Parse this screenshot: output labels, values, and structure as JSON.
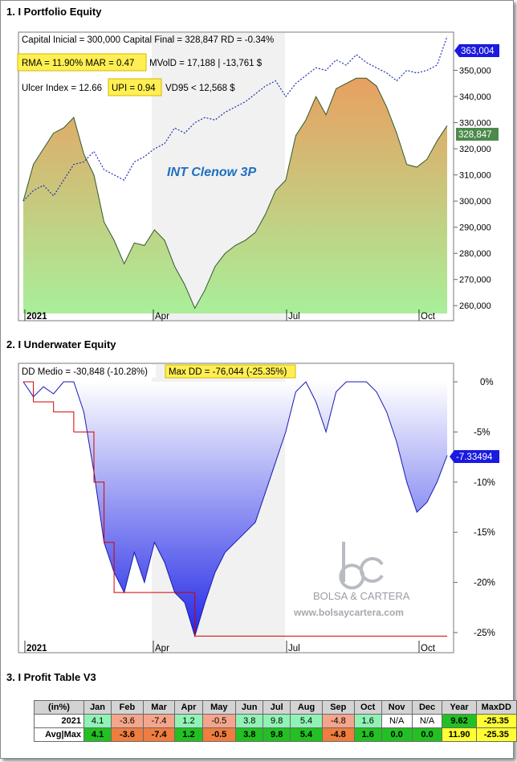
{
  "sections": {
    "equity_title": "1. I Portfolio Equity",
    "underwater_title": "2. I Underwater Equity",
    "profit_title": "3. I Profit Table V3"
  },
  "equity_stats": {
    "line1": "Capital Inicial = 300,000  Capital Final = 328,847   RD = -0.34%",
    "rma_mar": "RMA = 11.90%  MAR = 0.47",
    "mvold": "MVolD = 17,188 | -13,761 $",
    "ulcer": "Ulcer Index = 12.66",
    "upi": "UPI = 0.94",
    "vd95": "VD95 < 12,568 $",
    "strategy_name": "INT Clenow 3P",
    "last_benchmark_label": "363,004",
    "last_equity_label": "328,847",
    "right_axis_ticks": [
      "350,000",
      "340,000",
      "330,000",
      "320,000",
      "310,000",
      "300,000",
      "290,000",
      "280,000",
      "270,000",
      "260,000"
    ],
    "x_ticks": [
      "2021",
      "Apr",
      "Jul",
      "Oct"
    ]
  },
  "underwater_stats": {
    "dd_medio": "DD Medio = -30,848 (-10.28%)",
    "max_dd": "Max DD = -76,044 (-25.35%)",
    "last_label": "-7.33494",
    "right_axis_ticks": [
      "0%",
      "-5%",
      "-10%",
      "-15%",
      "-20%",
      "-25%"
    ],
    "x_ticks": [
      "2021",
      "Apr",
      "Jul",
      "Oct"
    ],
    "watermark_brand": "BOLSA & CARTERA",
    "watermark_url": "www.bolsaycartera.com"
  },
  "colors": {
    "benchmark_line": "#1f2fb4",
    "equity_fill_top": "#e8a060",
    "equity_fill_bottom": "#a9ef9a",
    "underwater_fill_top": "#ffffff",
    "underwater_fill_bottom": "#2228e6",
    "maxdd_line": "#d40000",
    "highlight_box": "#ffef52",
    "label_blue": "#1a1ae0",
    "label_green": "#4c8a4c"
  },
  "chart_data": [
    {
      "type": "area",
      "x": [
        "2021-01-04",
        "2021-01-11",
        "2021-01-18",
        "2021-01-25",
        "2021-02-01",
        "2021-02-08",
        "2021-02-15",
        "2021-02-22",
        "2021-03-01",
        "2021-03-08",
        "2021-03-15",
        "2021-03-22",
        "2021-03-29",
        "2021-04-05",
        "2021-04-12",
        "2021-04-19",
        "2021-04-26",
        "2021-05-03",
        "2021-05-10",
        "2021-05-17",
        "2021-05-24",
        "2021-05-31",
        "2021-06-07",
        "2021-06-14",
        "2021-06-21",
        "2021-06-28",
        "2021-07-05",
        "2021-07-12",
        "2021-07-19",
        "2021-07-26",
        "2021-08-02",
        "2021-08-09",
        "2021-08-16",
        "2021-08-23",
        "2021-08-30",
        "2021-09-06",
        "2021-09-13",
        "2021-09-20",
        "2021-09-27",
        "2021-10-04",
        "2021-10-11",
        "2021-10-18",
        "2021-10-25"
      ],
      "series": [
        {
          "name": "",
          "values": [
            300000,
            314000,
            320000,
            326000,
            328000,
            332000,
            318000,
            310000,
            292000,
            285000,
            276000,
            284000,
            283000,
            289000,
            285000,
            275000,
            268000,
            259000,
            266000,
            275000,
            280000,
            283000,
            285000,
            288000,
            295000,
            304000,
            308000,
            325000,
            331000,
            340000,
            333000,
            343000,
            345000,
            347000,
            347000,
            344000,
            336000,
            326000,
            314000,
            313000,
            316000,
            323000,
            328847
          ]
        },
        {
          "name": "",
          "values": [
            300000,
            304000,
            306000,
            302000,
            308000,
            314000,
            315000,
            319000,
            312000,
            310000,
            308000,
            315000,
            317000,
            320000,
            322000,
            328000,
            326000,
            330000,
            332000,
            331000,
            334000,
            336000,
            338000,
            341000,
            344000,
            346000,
            340000,
            345000,
            348000,
            351000,
            350000,
            354000,
            352000,
            356000,
            353000,
            351000,
            349000,
            346000,
            350000,
            349000,
            350000,
            352000,
            363004
          ]
        }
      ],
      "ylim": [
        257000,
        364000
      ],
      "x_tick_labels": [
        "2021",
        "Apr",
        "Jul",
        "Oct"
      ]
    },
    {
      "type": "area",
      "x": [
        "2021-01-04",
        "2021-01-11",
        "2021-01-18",
        "2021-01-25",
        "2021-02-01",
        "2021-02-08",
        "2021-02-15",
        "2021-02-22",
        "2021-03-01",
        "2021-03-08",
        "2021-03-15",
        "2021-03-22",
        "2021-03-29",
        "2021-04-05",
        "2021-04-12",
        "2021-04-19",
        "2021-04-26",
        "2021-05-03",
        "2021-05-10",
        "2021-05-17",
        "2021-05-24",
        "2021-05-31",
        "2021-06-07",
        "2021-06-14",
        "2021-06-21",
        "2021-06-28",
        "2021-07-05",
        "2021-07-12",
        "2021-07-19",
        "2021-07-26",
        "2021-08-02",
        "2021-08-09",
        "2021-08-16",
        "2021-08-23",
        "2021-08-30",
        "2021-09-06",
        "2021-09-13",
        "2021-09-20",
        "2021-09-27",
        "2021-10-04",
        "2021-10-11",
        "2021-10-18",
        "2021-10-25"
      ],
      "series": [
        {
          "name": "",
          "values": [
            0,
            -1.5,
            -0.5,
            -1.2,
            0,
            0,
            -3,
            -9,
            -16,
            -19,
            -21,
            -17,
            -20,
            -16,
            -18,
            -21,
            -22,
            -25.35,
            -22,
            -19,
            -17,
            -16,
            -15,
            -14,
            -11,
            -8,
            -5,
            -1,
            0,
            -2,
            -5,
            -1,
            0,
            0,
            0,
            -1,
            -3,
            -6,
            -10,
            -13,
            -12,
            -10,
            -7.33
          ]
        },
        {
          "name": "",
          "values": [
            0,
            -2,
            -2,
            -3,
            -3,
            -5,
            -5,
            -10,
            -16,
            -21,
            -21,
            -21,
            -21,
            -21,
            -21,
            -21,
            -21,
            -25.35,
            -25.35,
            -25.35,
            -25.35,
            -25.35,
            -25.35,
            -25.35,
            -25.35,
            -25.35,
            -25.35,
            -25.35,
            -25.35,
            -25.35,
            -25.35,
            -25.35,
            -25.35,
            -25.35,
            -25.35,
            -25.35,
            -25.35,
            -25.35,
            -25.35,
            -25.35,
            -25.35,
            -25.35,
            -25.35
          ]
        }
      ],
      "ylim": [
        -26.5,
        0.5
      ],
      "x_tick_labels": [
        "2021",
        "Apr",
        "Jul",
        "Oct"
      ]
    },
    {
      "type": "table",
      "columns": [
        "(in%)",
        "Jan",
        "Feb",
        "Mar",
        "Apr",
        "May",
        "Jun",
        "Jul",
        "Aug",
        "Sep",
        "Oct",
        "Nov",
        "Dec",
        "Year",
        "MaxDD"
      ],
      "rows": [
        {
          "label": "2021",
          "values": [
            "4.1",
            "-3.6",
            "-7.4",
            "1.2",
            "-0.5",
            "3.8",
            "9.8",
            "5.4",
            "-4.8",
            "1.6",
            "N/A",
            "N/A",
            "9.62",
            "-25.35"
          ],
          "colors": [
            "#90f2b4",
            "#f5a58b",
            "#f5a58b",
            "#90f2b4",
            "#f5a58b",
            "#90f2b4",
            "#90f2b4",
            "#90f2b4",
            "#f5a58b",
            "#90f2b4",
            "#ffffff",
            "#ffffff",
            "#22c022",
            "#ffff33"
          ]
        },
        {
          "label": "Avg|Max",
          "values": [
            "4.1",
            "-3.6",
            "-7.4",
            "1.2",
            "-0.5",
            "3.8",
            "9.8",
            "5.4",
            "-4.8",
            "1.6",
            "0.0",
            "0.0",
            "11.90",
            "-25.35"
          ],
          "colors": [
            "#22c022",
            "#ee7d3f",
            "#ee7d3f",
            "#22c022",
            "#ee7d3f",
            "#22c022",
            "#22c022",
            "#22c022",
            "#ee7d3f",
            "#22c022",
            "#22c022",
            "#22c022",
            "#ffff33",
            "#ffff33"
          ]
        }
      ]
    }
  ]
}
